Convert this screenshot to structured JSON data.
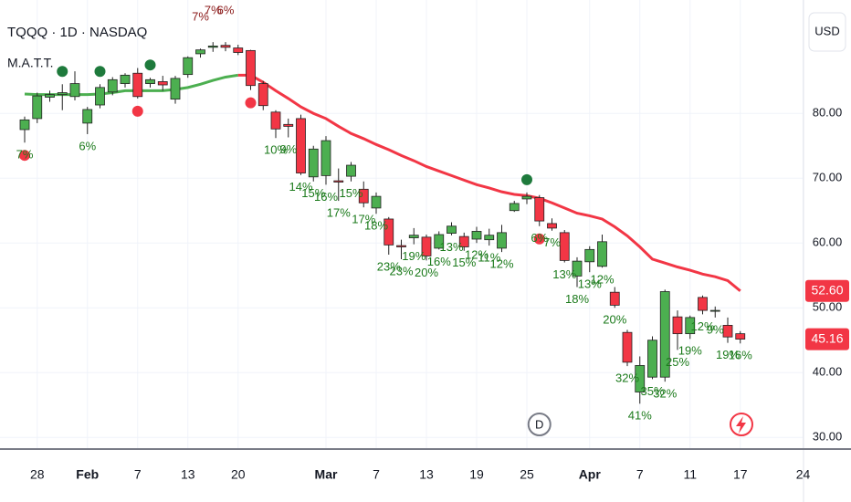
{
  "chart_data": {
    "type": "candlestick",
    "title": "TQQQ · 1D · NASDAQ",
    "indicator": "M.A.T.T.",
    "currency": "USD",
    "x": [
      "01-27",
      "01-28",
      "01-29",
      "01-30",
      "01-31",
      "02-03",
      "02-04",
      "02-05",
      "02-06",
      "02-07",
      "02-10",
      "02-11",
      "02-12",
      "02-13",
      "02-14",
      "02-18",
      "02-19",
      "02-20",
      "02-21",
      "02-24",
      "02-25",
      "02-26",
      "02-27",
      "02-28",
      "03-03",
      "03-04",
      "03-05",
      "03-06",
      "03-07",
      "03-10",
      "03-11",
      "03-12",
      "03-13",
      "03-14",
      "03-17",
      "03-18",
      "03-19",
      "03-20",
      "03-21",
      "03-24",
      "03-25",
      "03-26",
      "03-27",
      "03-28",
      "03-31",
      "04-01",
      "04-02",
      "04-03",
      "04-04",
      "04-07",
      "04-08",
      "04-09",
      "04-10",
      "04-11",
      "04-14",
      "04-15",
      "04-16",
      "04-17"
    ],
    "open": [
      77.5,
      79.2,
      82.5,
      82.9,
      82.6,
      78.5,
      81.3,
      83.3,
      84.6,
      86.2,
      84.6,
      84.9,
      82.2,
      86.0,
      89.2,
      90.2,
      90.5,
      90.1,
      89.7,
      84.6,
      80.2,
      78.3,
      79.2,
      70.2,
      70.4,
      69.6,
      70.3,
      68.3,
      65.4,
      63.7,
      59.6,
      60.8,
      60.9,
      59.2,
      61.5,
      61.0,
      60.6,
      60.5,
      59.2,
      65.0,
      66.8,
      67.0,
      63.0,
      61.6,
      54.9,
      57.1,
      56.4,
      52.4,
      46.2,
      37.0,
      39.3,
      39.3,
      48.6,
      46.0,
      51.6,
      49.5,
      47.3,
      46.0
    ],
    "high": [
      79.5,
      83.2,
      83.5,
      84.5,
      86.5,
      81.0,
      84.5,
      85.6,
      86.2,
      87.0,
      85.5,
      85.8,
      85.8,
      88.8,
      90.0,
      91.0,
      91.0,
      90.6,
      89.8,
      85.0,
      80.5,
      79.2,
      79.8,
      75.0,
      76.5,
      71.5,
      72.5,
      69.5,
      67.8,
      64.0,
      60.5,
      62.3,
      61.3,
      61.8,
      63.2,
      61.6,
      62.5,
      62.2,
      62.8,
      66.5,
      67.8,
      67.4,
      63.8,
      62.0,
      57.8,
      59.5,
      61.3,
      53.2,
      46.6,
      42.5,
      45.6,
      52.8,
      49.6,
      48.8,
      51.9,
      50.2,
      48.5,
      46.4
    ],
    "low": [
      75.5,
      78.5,
      81.8,
      80.5,
      82.0,
      76.8,
      80.8,
      82.8,
      84.0,
      82.3,
      84.0,
      83.5,
      81.5,
      85.5,
      88.6,
      89.5,
      89.6,
      89.0,
      83.6,
      80.5,
      76.2,
      76.3,
      70.5,
      69.5,
      69.0,
      66.5,
      69.5,
      65.5,
      64.5,
      58.2,
      57.5,
      59.8,
      57.3,
      59.0,
      61.2,
      58.8,
      60.0,
      59.6,
      58.6,
      64.8,
      66.0,
      62.6,
      61.9,
      57.0,
      53.2,
      55.5,
      56.2,
      50.0,
      41.0,
      35.2,
      39.0,
      38.6,
      43.5,
      45.2,
      49.0,
      48.5,
      44.6,
      44.5
    ],
    "close": [
      79.0,
      82.7,
      82.9,
      83.2,
      84.6,
      80.6,
      84.0,
      85.2,
      85.9,
      82.6,
      85.2,
      84.4,
      85.4,
      88.6,
      89.8,
      90.4,
      90.2,
      89.4,
      84.3,
      81.2,
      77.6,
      78.0,
      70.8,
      74.5,
      75.8,
      69.4,
      72.0,
      66.2,
      67.2,
      59.7,
      59.4,
      61.2,
      58.0,
      61.3,
      62.6,
      59.4,
      61.8,
      61.2,
      61.6,
      66.1,
      67.2,
      63.4,
      62.3,
      57.3,
      57.2,
      59.0,
      60.2,
      50.4,
      41.6,
      41.1,
      45.0,
      52.5,
      46.0,
      48.5,
      49.6,
      49.6,
      45.5,
      45.16
    ],
    "up_color": "#4caf50",
    "down_color": "#f23645",
    "ma": [
      {
        "color": "#4caf50",
        "values": [
          83.0,
          82.9,
          82.9,
          82.9,
          82.9,
          82.9,
          83.0,
          83.2,
          83.5,
          83.5,
          83.5,
          83.5,
          83.7,
          84.0,
          84.5,
          85.1,
          85.6,
          85.9,
          null,
          null,
          null,
          null,
          null,
          null,
          null,
          null,
          null,
          null,
          null,
          null,
          null,
          null,
          null,
          null,
          null,
          null,
          null,
          null,
          null,
          null,
          null,
          null,
          null,
          null,
          null,
          null,
          null,
          null,
          null,
          null,
          null,
          null,
          null,
          null,
          null,
          null,
          null,
          null
        ]
      },
      {
        "color": "#f23645",
        "values": [
          null,
          null,
          null,
          null,
          null,
          null,
          null,
          null,
          null,
          null,
          null,
          null,
          null,
          null,
          null,
          null,
          null,
          85.9,
          85.9,
          84.8,
          83.5,
          82.3,
          81.0,
          80.0,
          79.2,
          78.0,
          76.9,
          76.1,
          75.2,
          74.4,
          73.5,
          72.7,
          71.8,
          71.1,
          70.4,
          69.7,
          69.0,
          68.5,
          67.9,
          67.5,
          67.3,
          66.9,
          66.2,
          65.4,
          64.6,
          64.2,
          63.7,
          62.5,
          61.1,
          59.4,
          57.5,
          56.9,
          56.3,
          55.8,
          55.2,
          54.8,
          54.2,
          52.6
        ]
      }
    ],
    "ma_last_label": "52.60",
    "signals_up": [
      "01-30",
      "02-04",
      "02-10",
      "03-25"
    ],
    "signals_down": [
      "01-27",
      "02-07",
      "02-21",
      "03-26"
    ],
    "labels_above": [
      {
        "x": "02-14",
        "text": "7%"
      },
      {
        "x": "02-18",
        "text": "7%"
      },
      {
        "x": "02-19",
        "text": "6%"
      }
    ],
    "labels_below": [
      {
        "x": "01-27",
        "text": "7%"
      },
      {
        "x": "02-03",
        "text": "6%"
      },
      {
        "x": "02-25",
        "text": "10%"
      },
      {
        "x": "02-26",
        "text": "9%"
      },
      {
        "x": "02-27",
        "text": "14%"
      },
      {
        "x": "02-28",
        "text": "15%"
      },
      {
        "x": "03-03",
        "text": "16%"
      },
      {
        "x": "03-04",
        "text": "17%"
      },
      {
        "x": "03-05",
        "text": "15%"
      },
      {
        "x": "03-06",
        "text": "17%"
      },
      {
        "x": "03-07",
        "text": "18%"
      },
      {
        "x": "03-10",
        "text": "23%"
      },
      {
        "x": "03-11",
        "text": "23%"
      },
      {
        "x": "03-12",
        "text": "19%"
      },
      {
        "x": "03-13",
        "text": "20%"
      },
      {
        "x": "03-14",
        "text": "16%"
      },
      {
        "x": "03-17",
        "text": "13%"
      },
      {
        "x": "03-18",
        "text": "15%"
      },
      {
        "x": "03-19",
        "text": "12%"
      },
      {
        "x": "03-20",
        "text": "11%"
      },
      {
        "x": "03-21",
        "text": "12%"
      },
      {
        "x": "03-26",
        "text": "6%"
      },
      {
        "x": "03-27",
        "text": "7%"
      },
      {
        "x": "03-28",
        "text": "13%"
      },
      {
        "x": "03-31",
        "text": "18%"
      },
      {
        "x": "04-01",
        "text": "13%"
      },
      {
        "x": "04-02",
        "text": "12%"
      },
      {
        "x": "04-03",
        "text": "20%"
      },
      {
        "x": "04-04",
        "text": "32%"
      },
      {
        "x": "04-07",
        "text": "41%"
      },
      {
        "x": "04-08",
        "text": "35%"
      },
      {
        "x": "04-09",
        "text": "32%"
      },
      {
        "x": "04-10",
        "text": "25%"
      },
      {
        "x": "04-11",
        "text": "19%"
      },
      {
        "x": "04-14",
        "text": "12%"
      },
      {
        "x": "04-15",
        "text": "9%"
      },
      {
        "x": "04-16",
        "text": "19%"
      },
      {
        "x": "04-17",
        "text": "16%"
      }
    ],
    "dividend": {
      "x": "03-26",
      "text": "D"
    },
    "ylim": [
      28.2,
      97.5
    ],
    "yticks": [
      {
        "value": 30,
        "label": "30.00"
      },
      {
        "value": 40,
        "label": "40.00"
      },
      {
        "value": 50,
        "label": "50.00"
      },
      {
        "value": 60,
        "label": "60.00"
      },
      {
        "value": 70,
        "label": "70.00"
      },
      {
        "value": 80,
        "label": "80.00"
      }
    ],
    "xticks": [
      {
        "value": "01-28",
        "label": "28"
      },
      {
        "value": "02-03",
        "label": "Feb"
      },
      {
        "value": "02-07",
        "label": "7"
      },
      {
        "value": "02-13",
        "label": "13"
      },
      {
        "value": "02-20",
        "label": "20"
      },
      {
        "value": "03-03",
        "label": "Mar"
      },
      {
        "value": "03-07",
        "label": "7"
      },
      {
        "value": "03-13",
        "label": "13"
      },
      {
        "value": "03-19",
        "label": "19"
      },
      {
        "value": "03-25",
        "label": "25"
      },
      {
        "value": "04-01",
        "label": "Apr"
      },
      {
        "value": "04-07",
        "label": "7"
      },
      {
        "value": "04-11",
        "label": "11"
      },
      {
        "value": "04-17",
        "label": "17"
      },
      {
        "value": "04-24",
        "label": "24"
      }
    ],
    "grid": true
  }
}
